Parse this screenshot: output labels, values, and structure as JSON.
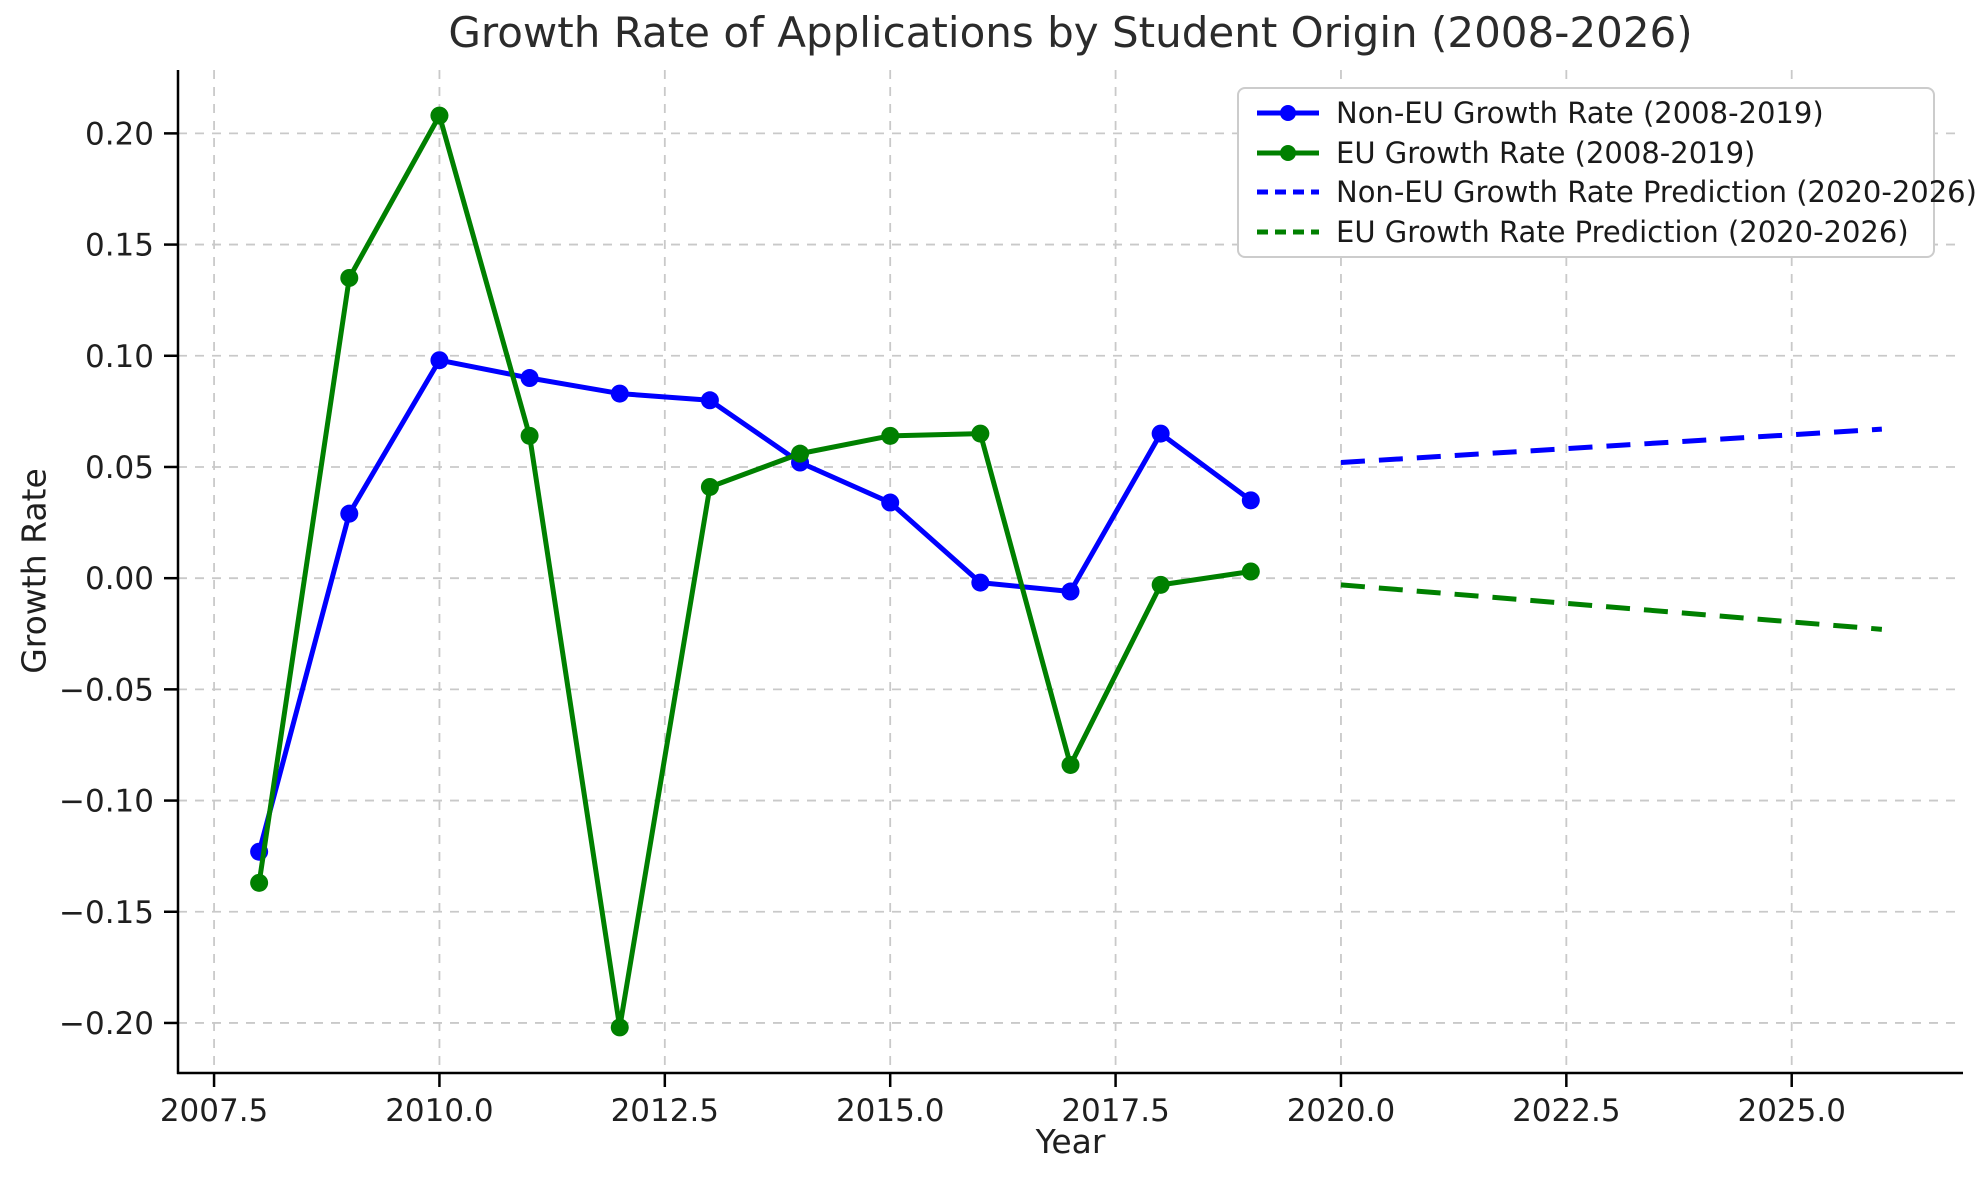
{
  "chart_data": {
    "type": "line",
    "title": "Growth Rate of Applications by Student Origin (2008-2026)",
    "xlabel": "Year",
    "ylabel": "Growth Rate",
    "xlim": [
      2007.1,
      2026.9
    ],
    "ylim": [
      -0.2225,
      0.2285
    ],
    "x_ticks": [
      2007.5,
      2010.0,
      2012.5,
      2015.0,
      2017.5,
      2020.0,
      2022.5,
      2025.0
    ],
    "y_ticks": [
      -0.2,
      -0.15,
      -0.1,
      -0.05,
      0.0,
      0.05,
      0.1,
      0.15,
      0.2
    ],
    "grid": true,
    "legend_position": "upper right",
    "series": [
      {
        "name": "Non-EU Growth Rate (2008-2019)",
        "color": "#0000ff",
        "style": "solid",
        "marker": "circle",
        "x": [
          2008,
          2009,
          2010,
          2011,
          2012,
          2013,
          2014,
          2015,
          2016,
          2017,
          2018,
          2019
        ],
        "y": [
          -0.123,
          0.029,
          0.098,
          0.09,
          0.083,
          0.08,
          0.052,
          0.034,
          -0.002,
          -0.006,
          0.065,
          0.035
        ]
      },
      {
        "name": "EU Growth Rate (2008-2019)",
        "color": "#008000",
        "style": "solid",
        "marker": "circle",
        "x": [
          2008,
          2009,
          2010,
          2011,
          2012,
          2013,
          2014,
          2015,
          2016,
          2017,
          2018,
          2019
        ],
        "y": [
          -0.137,
          0.135,
          0.208,
          0.064,
          -0.202,
          0.041,
          0.056,
          0.064,
          0.065,
          -0.084,
          -0.003,
          0.003
        ]
      },
      {
        "name": "Non-EU Growth Rate Prediction (2020-2026)",
        "color": "#0000ff",
        "style": "dashed",
        "marker": "none",
        "x": [
          2020,
          2026
        ],
        "y": [
          0.052,
          0.067
        ]
      },
      {
        "name": "EU Growth Rate Prediction (2020-2026)",
        "color": "#008000",
        "style": "dashed",
        "marker": "none",
        "x": [
          2020,
          2026
        ],
        "y": [
          -0.003,
          -0.023
        ]
      }
    ]
  },
  "colors": {
    "grid": "#c9c9c9",
    "spine": "#000000",
    "tick_text": "#1f1f1f"
  }
}
